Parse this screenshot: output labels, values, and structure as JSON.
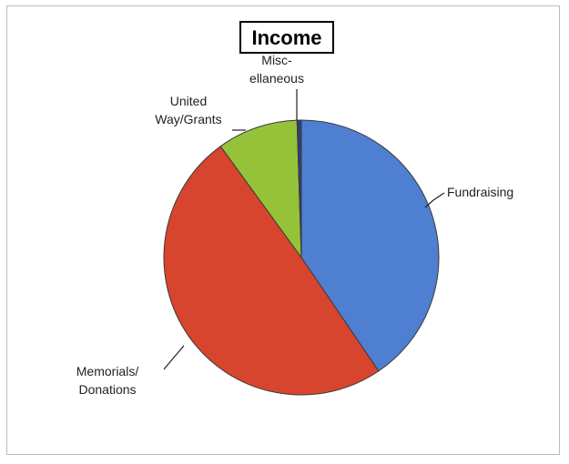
{
  "chart_data": {
    "type": "pie",
    "title": "Income",
    "slices": [
      {
        "label": "Fundraising",
        "lines": [
          "Fundraising"
        ],
        "value": 40.5,
        "color": "#4f7fd0"
      },
      {
        "label": "Memorials/ Donations",
        "lines": [
          "Memorials/",
          "Donations"
        ],
        "value": 49.5,
        "color": "#d8452e"
      },
      {
        "label": "United Way/Grants",
        "lines": [
          "United",
          "Way/Grants"
        ],
        "value": 9.5,
        "color": "#96c23a"
      },
      {
        "label": "Misc- ellaneous",
        "lines": [
          "Misc-",
          "ellaneous"
        ],
        "value": 0.5,
        "color": "#2f3e7a"
      }
    ]
  }
}
